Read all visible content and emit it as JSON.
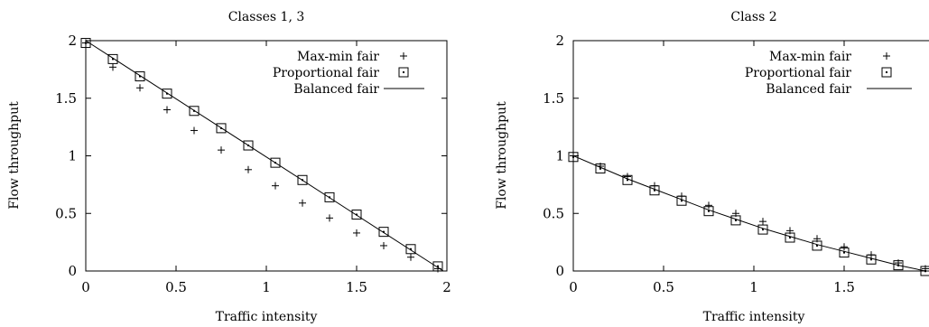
{
  "chart_data": [
    {
      "type": "line",
      "title": "Classes 1, 3",
      "xlabel": "Traffic intensity",
      "ylabel": "Flow throughput",
      "xlim": [
        0,
        2
      ],
      "ylim": [
        0,
        2
      ],
      "xticks": [
        0,
        0.5,
        1,
        1.5,
        2
      ],
      "xtick_labels": [
        "0",
        "0.5",
        "1",
        "1.5",
        "2"
      ],
      "yticks": [
        0,
        0.5,
        1,
        1.5,
        2
      ],
      "ytick_labels": [
        "0",
        "0.5",
        "1",
        "1.5",
        "2"
      ],
      "grid": false,
      "legend_position": "top-right",
      "series": [
        {
          "name": "Max-min fair",
          "marker": "plus",
          "x": [
            0,
            0.15,
            0.3,
            0.45,
            0.6,
            0.75,
            0.9,
            1.05,
            1.2,
            1.35,
            1.5,
            1.65,
            1.8,
            1.95
          ],
          "y": [
            1.98,
            1.77,
            1.59,
            1.4,
            1.22,
            1.05,
            0.88,
            0.74,
            0.59,
            0.46,
            0.33,
            0.22,
            0.12,
            0.02
          ]
        },
        {
          "name": "Proportional fair",
          "marker": "square",
          "x": [
            0,
            0.15,
            0.3,
            0.45,
            0.6,
            0.75,
            0.9,
            1.05,
            1.2,
            1.35,
            1.5,
            1.65,
            1.8,
            1.95
          ],
          "y": [
            1.98,
            1.84,
            1.69,
            1.54,
            1.39,
            1.24,
            1.09,
            0.94,
            0.79,
            0.64,
            0.49,
            0.34,
            0.19,
            0.04
          ]
        },
        {
          "name": "Balanced fair",
          "marker": "line",
          "x": [
            0,
            1.98
          ],
          "y": [
            2.0,
            0.0
          ]
        }
      ]
    },
    {
      "type": "line",
      "title": "Class 2",
      "xlabel": "Traffic intensity",
      "ylabel": "Flow throughput",
      "xlim": [
        0,
        2
      ],
      "ylim": [
        0,
        2
      ],
      "xticks": [
        0,
        0.5,
        1,
        1.5
      ],
      "xtick_labels": [
        "0",
        "0.5",
        "1",
        "1.5"
      ],
      "yticks": [
        0,
        0.5,
        1,
        1.5,
        2
      ],
      "ytick_labels": [
        "0",
        "0.5",
        "1",
        "1.5",
        "2"
      ],
      "grid": false,
      "legend_position": "top-right",
      "series": [
        {
          "name": "Max-min fair",
          "marker": "plus",
          "x": [
            0,
            0.15,
            0.3,
            0.45,
            0.6,
            0.75,
            0.9,
            1.05,
            1.2,
            1.35,
            1.5,
            1.65,
            1.8,
            1.95
          ],
          "y": [
            1.0,
            0.91,
            0.82,
            0.74,
            0.65,
            0.57,
            0.5,
            0.43,
            0.35,
            0.28,
            0.21,
            0.14,
            0.07,
            0.02
          ]
        },
        {
          "name": "Proportional fair",
          "marker": "square",
          "x": [
            0,
            0.15,
            0.3,
            0.45,
            0.6,
            0.75,
            0.9,
            1.05,
            1.2,
            1.35,
            1.5,
            1.65,
            1.8,
            1.95
          ],
          "y": [
            0.99,
            0.89,
            0.79,
            0.7,
            0.61,
            0.52,
            0.44,
            0.36,
            0.29,
            0.22,
            0.16,
            0.1,
            0.05,
            0.0
          ]
        },
        {
          "name": "Balanced fair",
          "marker": "line",
          "x": [
            0,
            0.15,
            0.3,
            0.45,
            0.6,
            0.75,
            0.9,
            1.05,
            1.2,
            1.35,
            1.5,
            1.65,
            1.8,
            1.95
          ],
          "y": [
            1.0,
            0.9,
            0.8,
            0.71,
            0.62,
            0.53,
            0.45,
            0.37,
            0.3,
            0.23,
            0.17,
            0.11,
            0.05,
            0.0
          ]
        }
      ]
    }
  ]
}
